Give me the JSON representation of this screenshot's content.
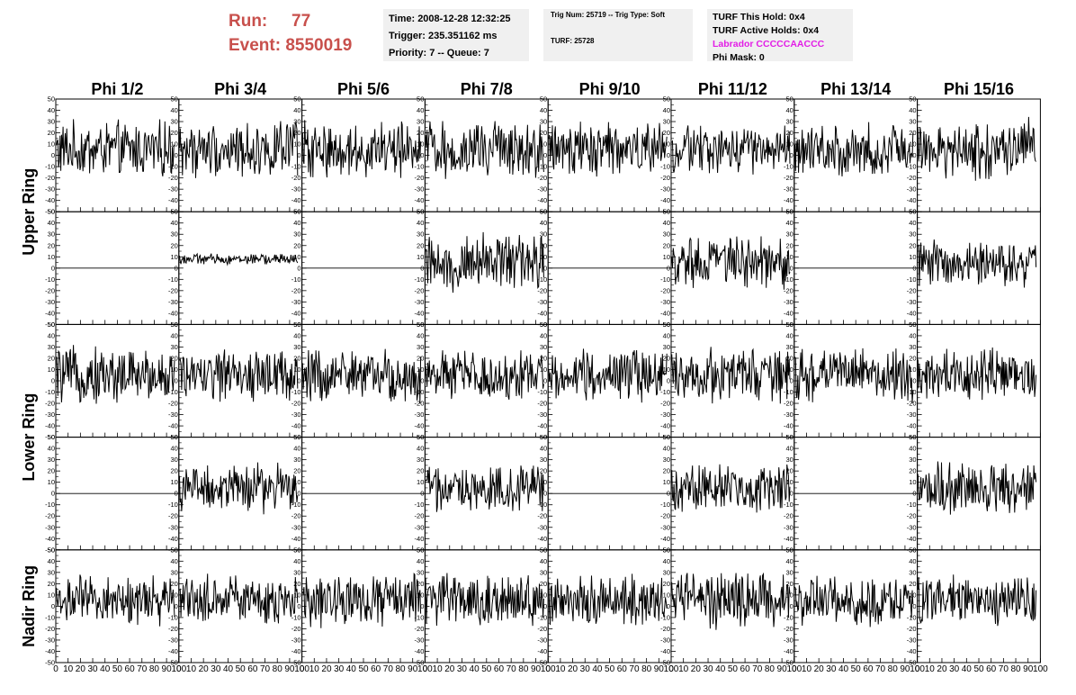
{
  "header": {
    "run_label": "Run:",
    "run_value": "77",
    "event_label": "Event:",
    "event_value": "8550019"
  },
  "info_time": {
    "time": "Time: 2008-12-28 12:32:25",
    "trigger": "Trigger: 235.351162 ms",
    "priority": "Priority: 7 -- Queue: 7"
  },
  "info_trig": {
    "trig": "Trig Num: 25719 -- Trig Type: Soft",
    "turf": "TURF: 25728"
  },
  "info_turf": {
    "this_hold": "TURF This Hold: 0x4",
    "active_holds": "TURF Active Holds: 0x4",
    "labrador": "Labrador CCCCCAACCC",
    "phi_mask": "Phi Mask: 0"
  },
  "colors": {
    "header_red": "#c8504c",
    "labrador_magenta": "#e21ee6",
    "info_bg": "#f0f0f0",
    "trace": "#000000"
  },
  "chart_data": {
    "type": "line",
    "columns": [
      "Phi 1/2",
      "Phi 3/4",
      "Phi 5/6",
      "Phi 7/8",
      "Phi 9/10",
      "Phi 11/12",
      "Phi 13/14",
      "Phi 15/16"
    ],
    "rings": [
      "Upper Ring",
      "Lower Ring",
      "Nadir Ring"
    ],
    "xlim": [
      0,
      100
    ],
    "x_ticks": [
      "0",
      "10",
      "20",
      "30",
      "40",
      "50",
      "60",
      "70",
      "80",
      "90",
      "100"
    ],
    "ylim": [
      -50,
      50
    ],
    "y_ticks": [
      "50",
      "40",
      "30",
      "20",
      "10",
      "0",
      "-10",
      "-20",
      "-30",
      "-40",
      "-50"
    ],
    "panels": [
      [
        {
          "active": true,
          "mean": 5,
          "amp": 16
        },
        {
          "active": true,
          "mean": 5,
          "amp": 16
        },
        {
          "active": true,
          "mean": 5,
          "amp": 16
        },
        {
          "active": true,
          "mean": 5,
          "amp": 17
        },
        {
          "active": true,
          "mean": 5,
          "amp": 16
        },
        {
          "active": true,
          "mean": 5,
          "amp": 14
        },
        {
          "active": true,
          "mean": 5,
          "amp": 15
        },
        {
          "active": true,
          "mean": 5,
          "amp": 17
        }
      ],
      [
        {
          "active": false,
          "mean": 0,
          "amp": 0
        },
        {
          "active": true,
          "mean": 8,
          "amp": 3
        },
        {
          "active": false,
          "mean": 0,
          "amp": 0
        },
        {
          "active": true,
          "mean": 5,
          "amp": 16
        },
        {
          "active": false,
          "mean": 0,
          "amp": 0
        },
        {
          "active": true,
          "mean": 5,
          "amp": 15
        },
        {
          "active": false,
          "mean": 0,
          "amp": 0
        },
        {
          "active": true,
          "mean": 5,
          "amp": 14
        }
      ],
      [
        {
          "active": true,
          "mean": 5,
          "amp": 16
        },
        {
          "active": true,
          "mean": 5,
          "amp": 15
        },
        {
          "active": true,
          "mean": 5,
          "amp": 15
        },
        {
          "active": true,
          "mean": 5,
          "amp": 15
        },
        {
          "active": true,
          "mean": 5,
          "amp": 14
        },
        {
          "active": true,
          "mean": 5,
          "amp": 15
        },
        {
          "active": true,
          "mean": 5,
          "amp": 15
        },
        {
          "active": true,
          "mean": 5,
          "amp": 15
        }
      ],
      [
        {
          "active": false,
          "mean": 0,
          "amp": 0
        },
        {
          "active": true,
          "mean": 5,
          "amp": 14
        },
        {
          "active": false,
          "mean": 0,
          "amp": 0
        },
        {
          "active": true,
          "mean": 5,
          "amp": 14
        },
        {
          "active": false,
          "mean": 0,
          "amp": 0
        },
        {
          "active": true,
          "mean": 5,
          "amp": 14
        },
        {
          "active": false,
          "mean": 0,
          "amp": 0
        },
        {
          "active": true,
          "mean": 5,
          "amp": 15
        }
      ],
      [
        {
          "active": true,
          "mean": 5,
          "amp": 14
        },
        {
          "active": true,
          "mean": 5,
          "amp": 14
        },
        {
          "active": true,
          "mean": 5,
          "amp": 15
        },
        {
          "active": true,
          "mean": 5,
          "amp": 15
        },
        {
          "active": true,
          "mean": 5,
          "amp": 14
        },
        {
          "active": true,
          "mean": 5,
          "amp": 16
        },
        {
          "active": true,
          "mean": 5,
          "amp": 14
        },
        {
          "active": true,
          "mean": 5,
          "amp": 14
        }
      ]
    ]
  }
}
